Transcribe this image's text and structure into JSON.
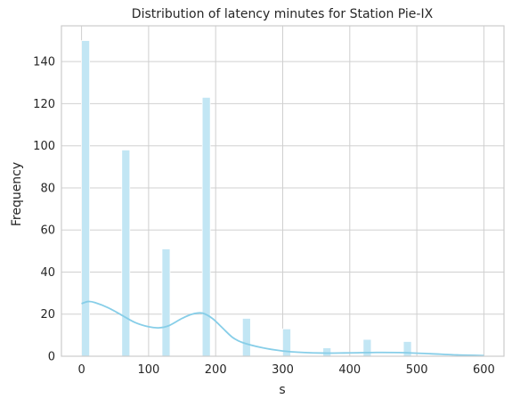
{
  "chart_data": {
    "type": "bar",
    "title": "Distribution of latency minutes for Station Pie-IX",
    "xlabel": "s",
    "ylabel": "Frequency",
    "xlim": [
      -30,
      630
    ],
    "ylim": [
      0,
      157
    ],
    "xticks": [
      0,
      100,
      200,
      300,
      400,
      500,
      600
    ],
    "yticks": [
      0,
      20,
      40,
      60,
      80,
      100,
      120,
      140
    ],
    "grid": true,
    "bin_width": 12,
    "bars": [
      {
        "x": 0,
        "count": 150
      },
      {
        "x": 60,
        "count": 98
      },
      {
        "x": 120,
        "count": 51
      },
      {
        "x": 180,
        "count": 123
      },
      {
        "x": 240,
        "count": 18
      },
      {
        "x": 300,
        "count": 13
      },
      {
        "x": 360,
        "count": 4
      },
      {
        "x": 420,
        "count": 8
      },
      {
        "x": 480,
        "count": 7
      }
    ],
    "kde": {
      "x": [
        0,
        10,
        20,
        40,
        60,
        80,
        100,
        115,
        130,
        150,
        165,
        180,
        195,
        210,
        225,
        240,
        270,
        300,
        330,
        360,
        400,
        440,
        480,
        520,
        560,
        600
      ],
      "y": [
        25,
        26,
        25.5,
        23,
        19.5,
        16,
        14,
        13.5,
        14.5,
        18,
        20,
        20.5,
        18,
        13.5,
        9,
        6.5,
        4,
        2.5,
        1.8,
        1.5,
        1.6,
        1.8,
        1.7,
        1.2,
        0.6,
        0.3
      ]
    },
    "colors": {
      "bar_fill": "#c2e6f4",
      "bar_stroke": "#ffffff",
      "kde_line": "#87cee8",
      "grid": "#d0d0d0",
      "axis_frame": "#cccccc"
    }
  }
}
